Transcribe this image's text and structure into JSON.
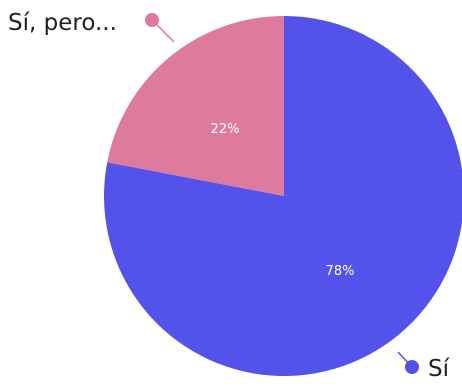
{
  "chart_data": {
    "type": "pie",
    "slices": [
      {
        "label": "Sí",
        "value": 78,
        "value_label": "78%",
        "color": "#5353ec"
      },
      {
        "label": "Sí, pero...",
        "value": 22,
        "value_label": "22%",
        "color": "#df7a9f"
      }
    ],
    "start_angle_deg": 0,
    "direction": "clockwise",
    "legend_placement": "outside labels with leader lines",
    "title": "",
    "background": "#ffffff"
  }
}
